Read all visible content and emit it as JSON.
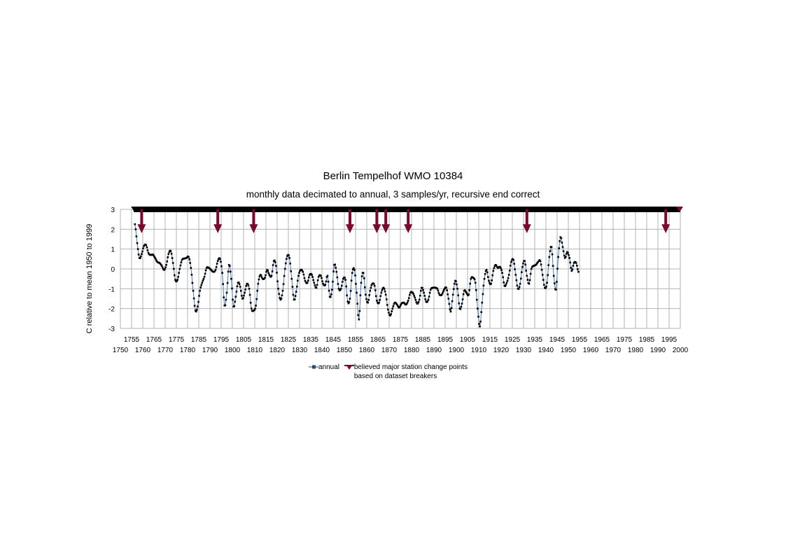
{
  "chart_data": {
    "type": "line",
    "title": "Berlin Tempelhof WMO 10384",
    "subtitle": "monthly data decimated to annual, 3 samples/yr, recursive end correct",
    "ylabel": "C relative to mean 1950 to 1999",
    "xlabel": "",
    "xlim": [
      1750,
      2000
    ],
    "ylim": [
      -3,
      3
    ],
    "yticks": [
      3,
      2,
      1,
      0,
      -1,
      -2,
      -3
    ],
    "xticks_upper": [
      1755,
      1765,
      1775,
      1785,
      1795,
      1805,
      1815,
      1825,
      1835,
      1845,
      1855,
      1865,
      1875,
      1885,
      1895,
      1905,
      1915,
      1925,
      1935,
      1945,
      1955,
      1965,
      1975,
      1985,
      1995
    ],
    "xticks_lower": [
      1750,
      1760,
      1770,
      1780,
      1790,
      1800,
      1810,
      1820,
      1830,
      1840,
      1850,
      1860,
      1870,
      1880,
      1890,
      1900,
      1910,
      1920,
      1930,
      1940,
      1950,
      1960,
      1970,
      1980,
      1990,
      2000
    ],
    "grid": true,
    "legend_position": "bottom",
    "series": [
      {
        "name": "annual",
        "color": "#1f4e79",
        "points": [
          [
            1756.5,
            2.25
          ],
          [
            1757.5,
            1.3
          ],
          [
            1758.5,
            0.55
          ],
          [
            1759.5,
            0.75
          ],
          [
            1760.5,
            1.15
          ],
          [
            1761.5,
            1.2
          ],
          [
            1762.5,
            0.8
          ],
          [
            1763.5,
            0.7
          ],
          [
            1764.5,
            0.72
          ],
          [
            1765.5,
            0.55
          ],
          [
            1766.5,
            0.35
          ],
          [
            1767.5,
            0.3
          ],
          [
            1768.5,
            0.15
          ],
          [
            1769.5,
            -0.05
          ],
          [
            1770.5,
            0.2
          ],
          [
            1771.5,
            0.75
          ],
          [
            1772.5,
            0.9
          ],
          [
            1773.5,
            0.3
          ],
          [
            1774.5,
            -0.55
          ],
          [
            1775.5,
            -0.55
          ],
          [
            1776.5,
            0.0
          ],
          [
            1777.5,
            0.45
          ],
          [
            1778.5,
            0.52
          ],
          [
            1779.5,
            0.55
          ],
          [
            1780.5,
            0.6
          ],
          [
            1781.5,
            0.05
          ],
          [
            1782.5,
            -1.1
          ],
          [
            1783.5,
            -2.1
          ],
          [
            1784.5,
            -1.9
          ],
          [
            1785.5,
            -1.1
          ],
          [
            1786.5,
            -0.7
          ],
          [
            1787.5,
            -0.4
          ],
          [
            1788.5,
            0.05
          ],
          [
            1789.5,
            0.05
          ],
          [
            1790.5,
            -0.05
          ],
          [
            1791.5,
            -0.15
          ],
          [
            1792.5,
            -0.05
          ],
          [
            1793.5,
            0.4
          ],
          [
            1794.5,
            0.5
          ],
          [
            1795.5,
            -0.2
          ],
          [
            1796.5,
            -1.85
          ],
          [
            1797.5,
            -1.2
          ],
          [
            1798.5,
            0.2
          ],
          [
            1799.5,
            -0.5
          ],
          [
            1800.5,
            -1.9
          ],
          [
            1801.5,
            -1.4
          ],
          [
            1802.5,
            -0.7
          ],
          [
            1803.5,
            -0.9
          ],
          [
            1804.5,
            -1.5
          ],
          [
            1805.5,
            -1.2
          ],
          [
            1806.5,
            -0.75
          ],
          [
            1807.5,
            -1.0
          ],
          [
            1808.5,
            -2.0
          ],
          [
            1809.5,
            -2.1
          ],
          [
            1810.5,
            -1.85
          ],
          [
            1811.5,
            -0.75
          ],
          [
            1812.5,
            -0.3
          ],
          [
            1813.5,
            -0.5
          ],
          [
            1814.5,
            -0.45
          ],
          [
            1815.5,
            -0.05
          ],
          [
            1816.5,
            -0.3
          ],
          [
            1817.5,
            -0.35
          ],
          [
            1818.5,
            0.4
          ],
          [
            1819.5,
            0.15
          ],
          [
            1820.5,
            -1.0
          ],
          [
            1821.5,
            -1.55
          ],
          [
            1822.5,
            -1.1
          ],
          [
            1823.5,
            0.0
          ],
          [
            1824.5,
            0.65
          ],
          [
            1825.5,
            0.55
          ],
          [
            1826.5,
            -0.5
          ],
          [
            1827.5,
            -1.55
          ],
          [
            1828.5,
            -1.15
          ],
          [
            1829.5,
            -0.35
          ],
          [
            1830.5,
            -0.05
          ],
          [
            1831.5,
            -0.15
          ],
          [
            1832.5,
            -0.6
          ],
          [
            1833.5,
            -0.7
          ],
          [
            1834.5,
            -0.3
          ],
          [
            1835.5,
            -0.3
          ],
          [
            1836.5,
            -0.7
          ],
          [
            1837.5,
            -0.95
          ],
          [
            1838.5,
            -0.4
          ],
          [
            1839.5,
            -0.35
          ],
          [
            1840.5,
            -0.75
          ],
          [
            1841.5,
            -0.8
          ],
          [
            1842.5,
            -0.35
          ],
          [
            1843.5,
            -1.4
          ],
          [
            1844.5,
            -1.05
          ],
          [
            1845.5,
            0.2
          ],
          [
            1846.5,
            -0.15
          ],
          [
            1847.5,
            -1.0
          ],
          [
            1848.5,
            -1.0
          ],
          [
            1849.5,
            -0.5
          ],
          [
            1850.5,
            -0.55
          ],
          [
            1851.5,
            -1.65
          ],
          [
            1852.5,
            -1.5
          ],
          [
            1853.5,
            -0.2
          ],
          [
            1854.5,
            -0.05
          ],
          [
            1855.5,
            -1.2
          ],
          [
            1856.5,
            -2.55
          ],
          [
            1857.5,
            -0.7
          ],
          [
            1858.5,
            -0.2
          ],
          [
            1859.5,
            -1.3
          ],
          [
            1860.5,
            -1.7
          ],
          [
            1861.5,
            -1.1
          ],
          [
            1862.5,
            -0.75
          ],
          [
            1863.5,
            -0.85
          ],
          [
            1864.5,
            -1.6
          ],
          [
            1865.5,
            -1.7
          ],
          [
            1866.5,
            -1.2
          ],
          [
            1867.5,
            -0.95
          ],
          [
            1868.5,
            -1.3
          ],
          [
            1869.5,
            -2.05
          ],
          [
            1870.5,
            -2.35
          ],
          [
            1871.5,
            -2.0
          ],
          [
            1872.5,
            -1.7
          ],
          [
            1873.5,
            -1.8
          ],
          [
            1874.5,
            -1.95
          ],
          [
            1875.5,
            -1.75
          ],
          [
            1876.5,
            -1.7
          ],
          [
            1877.5,
            -1.8
          ],
          [
            1878.5,
            -1.6
          ],
          [
            1879.5,
            -1.2
          ],
          [
            1880.5,
            -1.2
          ],
          [
            1881.5,
            -1.45
          ],
          [
            1882.5,
            -1.75
          ],
          [
            1883.5,
            -1.55
          ],
          [
            1884.5,
            -0.95
          ],
          [
            1885.5,
            -1.2
          ],
          [
            1886.5,
            -1.65
          ],
          [
            1887.5,
            -1.55
          ],
          [
            1888.5,
            -1.05
          ],
          [
            1889.5,
            -0.95
          ],
          [
            1890.5,
            -0.95
          ],
          [
            1891.5,
            -1.0
          ],
          [
            1892.5,
            -1.3
          ],
          [
            1893.5,
            -1.3
          ],
          [
            1894.5,
            -1.05
          ],
          [
            1895.5,
            -0.95
          ],
          [
            1896.5,
            -1.5
          ],
          [
            1897.5,
            -2.15
          ],
          [
            1898.5,
            -1.3
          ],
          [
            1899.5,
            -0.6
          ],
          [
            1900.5,
            -1.0
          ],
          [
            1901.5,
            -2.0
          ],
          [
            1902.5,
            -1.75
          ],
          [
            1903.5,
            -1.1
          ],
          [
            1904.5,
            -1.2
          ],
          [
            1905.5,
            -1.3
          ],
          [
            1906.5,
            -0.5
          ],
          [
            1907.5,
            -0.45
          ],
          [
            1908.5,
            -0.7
          ],
          [
            1909.5,
            -2.0
          ],
          [
            1910.5,
            -2.9
          ],
          [
            1911.5,
            -1.7
          ],
          [
            1912.5,
            -0.5
          ],
          [
            1913.5,
            -0.05
          ],
          [
            1914.5,
            -0.6
          ],
          [
            1915.5,
            -0.75
          ],
          [
            1916.5,
            -0.1
          ],
          [
            1917.5,
            0.2
          ],
          [
            1918.5,
            0.05
          ],
          [
            1919.5,
            0.1
          ],
          [
            1920.5,
            -0.2
          ],
          [
            1921.5,
            -0.85
          ],
          [
            1922.5,
            -0.7
          ],
          [
            1923.5,
            -0.3
          ],
          [
            1924.5,
            0.35
          ],
          [
            1925.5,
            0.45
          ],
          [
            1926.5,
            -0.3
          ],
          [
            1927.5,
            -1.0
          ],
          [
            1928.5,
            -0.75
          ],
          [
            1929.5,
            0.1
          ],
          [
            1930.5,
            0.4
          ],
          [
            1931.5,
            -0.35
          ],
          [
            1932.5,
            -0.75
          ],
          [
            1933.5,
            0.0
          ],
          [
            1934.5,
            0.15
          ],
          [
            1935.5,
            0.2
          ],
          [
            1936.5,
            0.35
          ],
          [
            1937.5,
            0.4
          ],
          [
            1938.5,
            -0.3
          ],
          [
            1939.5,
            -0.95
          ],
          [
            1940.5,
            -0.7
          ],
          [
            1941.5,
            0.6
          ],
          [
            1942.5,
            1.1
          ],
          [
            1943.5,
            -0.35
          ],
          [
            1944.5,
            -1.05
          ],
          [
            1945.5,
            0.6
          ],
          [
            1946.5,
            1.6
          ],
          [
            1947.5,
            1.1
          ],
          [
            1948.5,
            0.55
          ],
          [
            1949.5,
            0.85
          ],
          [
            1950.5,
            0.55
          ],
          [
            1951.5,
            -0.1
          ],
          [
            1952.5,
            0.3
          ],
          [
            1953.5,
            0.3
          ],
          [
            1954.5,
            -0.15
          ]
        ]
      },
      {
        "name": "believed major station change points",
        "subname": "based on dataset breakers",
        "color": "#7a0a2a",
        "x": [
          1759.5,
          1793.5,
          1809.5,
          1852.5,
          1864.5,
          1868.5,
          1878.5,
          1931.5,
          1993.5
        ]
      }
    ]
  }
}
